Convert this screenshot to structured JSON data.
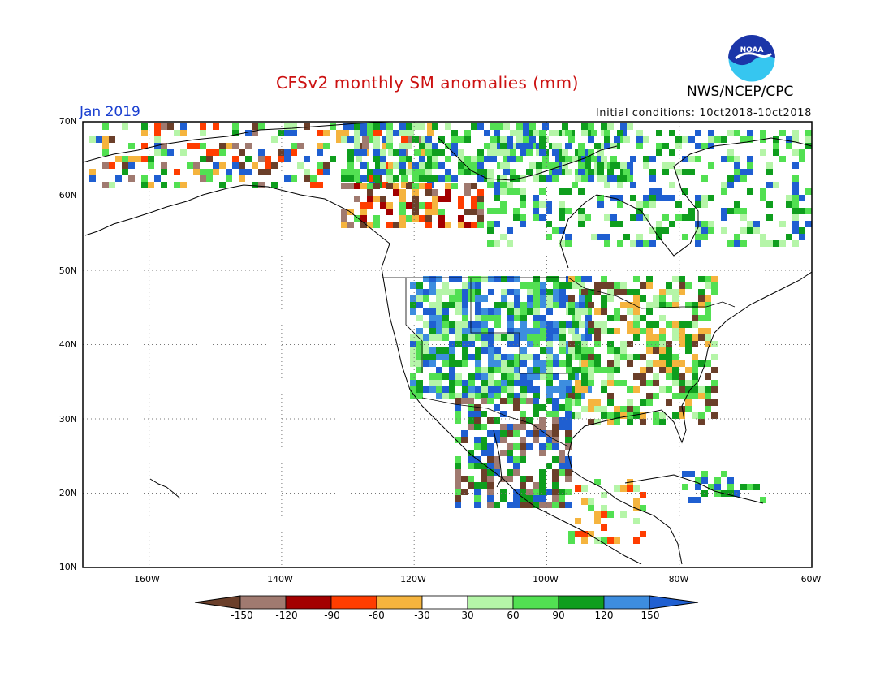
{
  "header": {
    "title": "CFSv2 monthly SM anomalies (mm)",
    "subtitle": "Jan 2019",
    "initial_conditions": "Initial conditions: 10ct2018-10ct2018",
    "org": "NWS/NCEP/CPC",
    "logo_text": "NOAA"
  },
  "axes": {
    "lat_labels": [
      "70N",
      "60N",
      "50N",
      "40N",
      "30N",
      "20N",
      "10N"
    ],
    "lon_labels": [
      "160W",
      "140W",
      "120W",
      "100W",
      "80W",
      "60W"
    ],
    "lat_range": [
      10,
      70
    ],
    "lon_range": [
      -170,
      -60
    ],
    "grid": "dotted"
  },
  "colorbar": {
    "ticks": [
      "-150",
      "-120",
      "-90",
      "-60",
      "-30",
      "30",
      "60",
      "90",
      "120",
      "150"
    ],
    "colors": [
      "#6b3f2a",
      "#a07a70",
      "#a30000",
      "#ff3d00",
      "#f5b43e",
      "#ffffff",
      "#b5f5a8",
      "#52e052",
      "#0f9e1e",
      "#3d8ddf",
      "#1f5fd1"
    ]
  },
  "colors": {
    "title": "#cc1111",
    "subtitle": "#1a3fd0",
    "logo_blue": "#1b35a8",
    "logo_cyan": "#36c6f0"
  }
}
